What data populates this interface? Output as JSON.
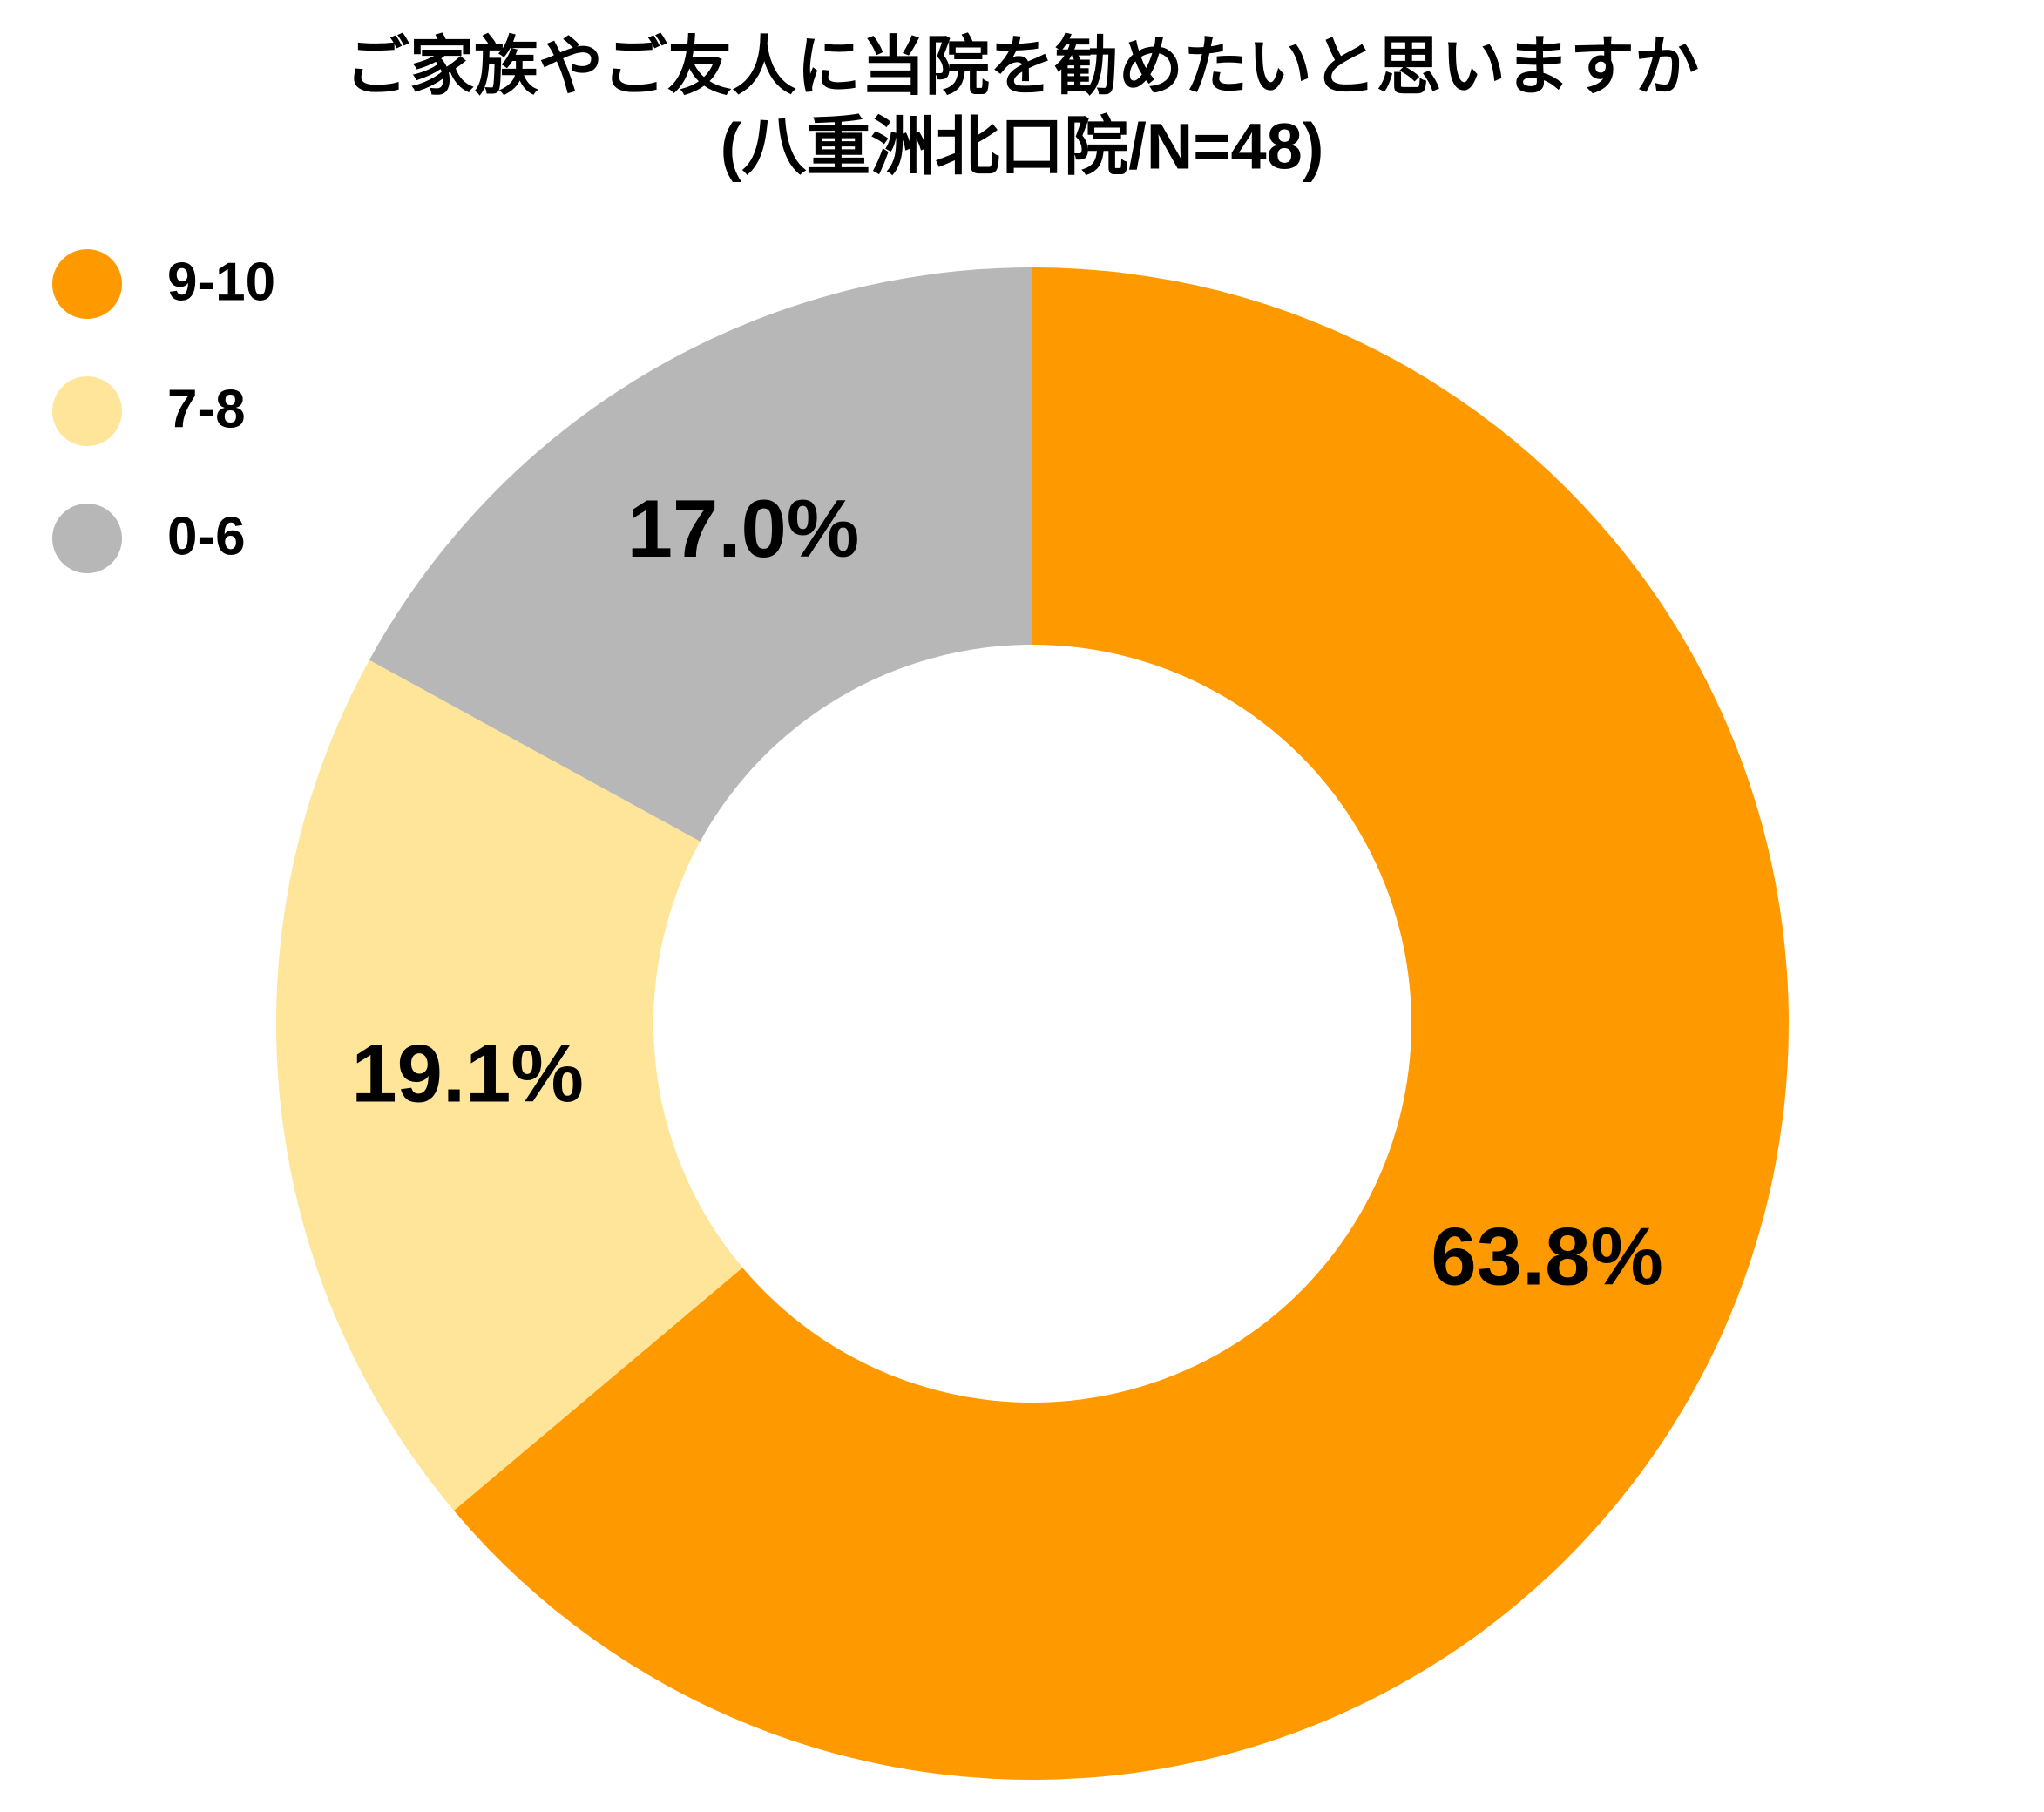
{
  "chart_data": {
    "type": "donut",
    "title": "ご家族やご友人に当院を勧めたいと思いますか",
    "subtitle": "(八重洲北口院/N=48)",
    "categories": [
      "9-10",
      "7-8",
      "0-6"
    ],
    "values": [
      63.8,
      19.1,
      17.0
    ],
    "value_labels": [
      "63.8%",
      "19.1%",
      "17.0%"
    ],
    "colors": [
      "#ff9900",
      "#ffe599",
      "#b7b7b7"
    ],
    "legend": "top-left"
  }
}
